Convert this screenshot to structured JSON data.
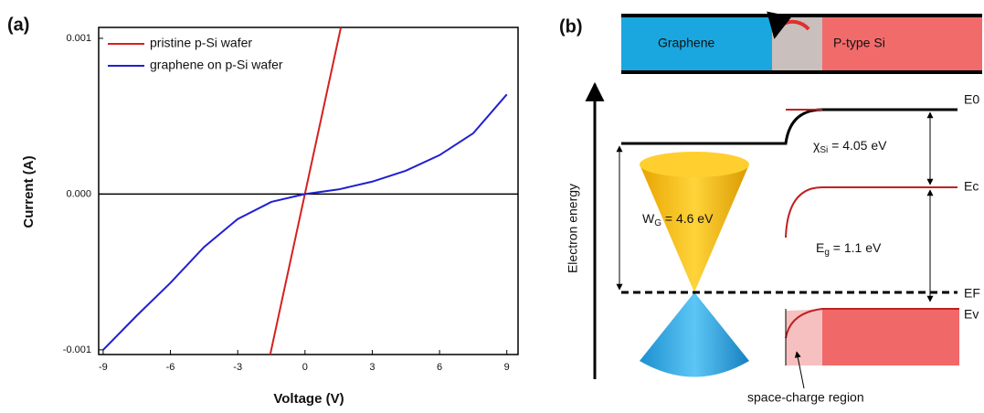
{
  "chart_data": {
    "type": "line",
    "panel_label": "(a)",
    "x_label": "Voltage (V)",
    "y_label": "Current (A)",
    "xlim": [
      -9.2,
      9.5
    ],
    "ylim": [
      -0.00103,
      0.00107
    ],
    "xticks": [
      -9,
      -6,
      -3,
      0,
      3,
      6,
      9
    ],
    "yticks": [
      -0.001,
      {
        "value": 0,
        "label": "0.000"
      },
      0.001
    ],
    "legend": "upper left",
    "series": [
      {
        "name": "pristine p-Si wafer",
        "color": "#d62020",
        "x": [
          -1.55,
          1.6
        ],
        "values": [
          -0.00103,
          0.00107
        ]
      },
      {
        "name": "graphene on p-Si wafer",
        "color": "#2020d0",
        "x": [
          -9,
          -7.5,
          -6,
          -4.5,
          -3,
          -1.5,
          0,
          1.5,
          3,
          4.5,
          6,
          7.5,
          9
        ],
        "values": [
          -0.001,
          -0.00078,
          -0.00057,
          -0.00034,
          -0.00016,
          -5e-05,
          0,
          3e-05,
          8e-05,
          0.00015,
          0.00025,
          0.00039,
          0.00064
        ]
      }
    ]
  },
  "diagram": {
    "panel_label": "(b)",
    "graphene": "Graphene",
    "silicon": "P-type Si",
    "y_axis": "Electron energy",
    "levels": [
      "E0",
      "Ec",
      "EF",
      "Ev"
    ],
    "affinity": {
      "symbol": "χ",
      "sub": "Si",
      "rest": " = 4.05 eV"
    },
    "work_function": {
      "symbol": "W",
      "sub": "G",
      "rest": " = 4.6 eV"
    },
    "gap": {
      "symbol": "E",
      "sub": "g",
      "rest": " = 1.1 eV"
    },
    "region": "space-charge region"
  }
}
